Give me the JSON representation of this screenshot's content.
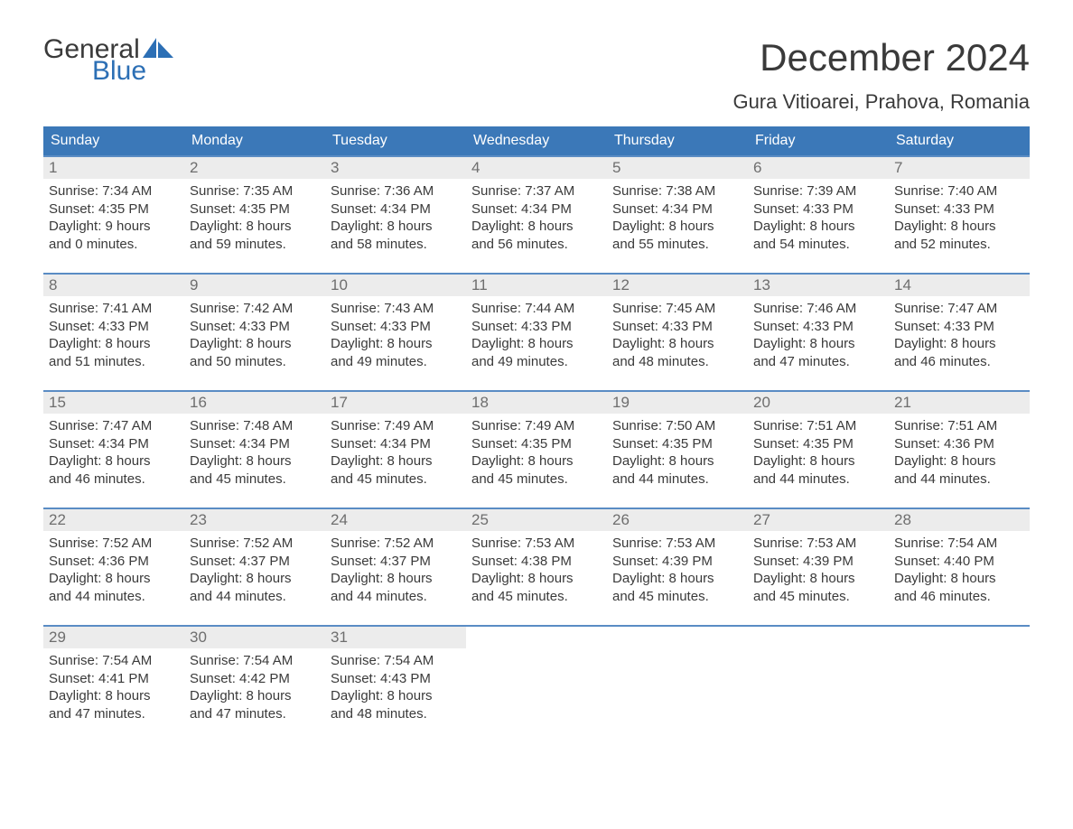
{
  "logo": {
    "line1": "General",
    "line2": "Blue",
    "accent_color": "#2c6fb5"
  },
  "title": "December 2024",
  "location": "Gura Vitioarei, Prahova, Romania",
  "colors": {
    "header_bg": "#3b78b8",
    "header_text": "#ffffff",
    "week_border": "#5a8cc4",
    "daynum_bg": "#ececec",
    "daynum_text": "#6e6e6e",
    "body_text": "#3a3a3a",
    "page_bg": "#ffffff"
  },
  "day_names": [
    "Sunday",
    "Monday",
    "Tuesday",
    "Wednesday",
    "Thursday",
    "Friday",
    "Saturday"
  ],
  "weeks": [
    [
      {
        "n": "1",
        "sr": "Sunrise: 7:34 AM",
        "ss": "Sunset: 4:35 PM",
        "d1": "Daylight: 9 hours",
        "d2": "and 0 minutes."
      },
      {
        "n": "2",
        "sr": "Sunrise: 7:35 AM",
        "ss": "Sunset: 4:35 PM",
        "d1": "Daylight: 8 hours",
        "d2": "and 59 minutes."
      },
      {
        "n": "3",
        "sr": "Sunrise: 7:36 AM",
        "ss": "Sunset: 4:34 PM",
        "d1": "Daylight: 8 hours",
        "d2": "and 58 minutes."
      },
      {
        "n": "4",
        "sr": "Sunrise: 7:37 AM",
        "ss": "Sunset: 4:34 PM",
        "d1": "Daylight: 8 hours",
        "d2": "and 56 minutes."
      },
      {
        "n": "5",
        "sr": "Sunrise: 7:38 AM",
        "ss": "Sunset: 4:34 PM",
        "d1": "Daylight: 8 hours",
        "d2": "and 55 minutes."
      },
      {
        "n": "6",
        "sr": "Sunrise: 7:39 AM",
        "ss": "Sunset: 4:33 PM",
        "d1": "Daylight: 8 hours",
        "d2": "and 54 minutes."
      },
      {
        "n": "7",
        "sr": "Sunrise: 7:40 AM",
        "ss": "Sunset: 4:33 PM",
        "d1": "Daylight: 8 hours",
        "d2": "and 52 minutes."
      }
    ],
    [
      {
        "n": "8",
        "sr": "Sunrise: 7:41 AM",
        "ss": "Sunset: 4:33 PM",
        "d1": "Daylight: 8 hours",
        "d2": "and 51 minutes."
      },
      {
        "n": "9",
        "sr": "Sunrise: 7:42 AM",
        "ss": "Sunset: 4:33 PM",
        "d1": "Daylight: 8 hours",
        "d2": "and 50 minutes."
      },
      {
        "n": "10",
        "sr": "Sunrise: 7:43 AM",
        "ss": "Sunset: 4:33 PM",
        "d1": "Daylight: 8 hours",
        "d2": "and 49 minutes."
      },
      {
        "n": "11",
        "sr": "Sunrise: 7:44 AM",
        "ss": "Sunset: 4:33 PM",
        "d1": "Daylight: 8 hours",
        "d2": "and 49 minutes."
      },
      {
        "n": "12",
        "sr": "Sunrise: 7:45 AM",
        "ss": "Sunset: 4:33 PM",
        "d1": "Daylight: 8 hours",
        "d2": "and 48 minutes."
      },
      {
        "n": "13",
        "sr": "Sunrise: 7:46 AM",
        "ss": "Sunset: 4:33 PM",
        "d1": "Daylight: 8 hours",
        "d2": "and 47 minutes."
      },
      {
        "n": "14",
        "sr": "Sunrise: 7:47 AM",
        "ss": "Sunset: 4:33 PM",
        "d1": "Daylight: 8 hours",
        "d2": "and 46 minutes."
      }
    ],
    [
      {
        "n": "15",
        "sr": "Sunrise: 7:47 AM",
        "ss": "Sunset: 4:34 PM",
        "d1": "Daylight: 8 hours",
        "d2": "and 46 minutes."
      },
      {
        "n": "16",
        "sr": "Sunrise: 7:48 AM",
        "ss": "Sunset: 4:34 PM",
        "d1": "Daylight: 8 hours",
        "d2": "and 45 minutes."
      },
      {
        "n": "17",
        "sr": "Sunrise: 7:49 AM",
        "ss": "Sunset: 4:34 PM",
        "d1": "Daylight: 8 hours",
        "d2": "and 45 minutes."
      },
      {
        "n": "18",
        "sr": "Sunrise: 7:49 AM",
        "ss": "Sunset: 4:35 PM",
        "d1": "Daylight: 8 hours",
        "d2": "and 45 minutes."
      },
      {
        "n": "19",
        "sr": "Sunrise: 7:50 AM",
        "ss": "Sunset: 4:35 PM",
        "d1": "Daylight: 8 hours",
        "d2": "and 44 minutes."
      },
      {
        "n": "20",
        "sr": "Sunrise: 7:51 AM",
        "ss": "Sunset: 4:35 PM",
        "d1": "Daylight: 8 hours",
        "d2": "and 44 minutes."
      },
      {
        "n": "21",
        "sr": "Sunrise: 7:51 AM",
        "ss": "Sunset: 4:36 PM",
        "d1": "Daylight: 8 hours",
        "d2": "and 44 minutes."
      }
    ],
    [
      {
        "n": "22",
        "sr": "Sunrise: 7:52 AM",
        "ss": "Sunset: 4:36 PM",
        "d1": "Daylight: 8 hours",
        "d2": "and 44 minutes."
      },
      {
        "n": "23",
        "sr": "Sunrise: 7:52 AM",
        "ss": "Sunset: 4:37 PM",
        "d1": "Daylight: 8 hours",
        "d2": "and 44 minutes."
      },
      {
        "n": "24",
        "sr": "Sunrise: 7:52 AM",
        "ss": "Sunset: 4:37 PM",
        "d1": "Daylight: 8 hours",
        "d2": "and 44 minutes."
      },
      {
        "n": "25",
        "sr": "Sunrise: 7:53 AM",
        "ss": "Sunset: 4:38 PM",
        "d1": "Daylight: 8 hours",
        "d2": "and 45 minutes."
      },
      {
        "n": "26",
        "sr": "Sunrise: 7:53 AM",
        "ss": "Sunset: 4:39 PM",
        "d1": "Daylight: 8 hours",
        "d2": "and 45 minutes."
      },
      {
        "n": "27",
        "sr": "Sunrise: 7:53 AM",
        "ss": "Sunset: 4:39 PM",
        "d1": "Daylight: 8 hours",
        "d2": "and 45 minutes."
      },
      {
        "n": "28",
        "sr": "Sunrise: 7:54 AM",
        "ss": "Sunset: 4:40 PM",
        "d1": "Daylight: 8 hours",
        "d2": "and 46 minutes."
      }
    ],
    [
      {
        "n": "29",
        "sr": "Sunrise: 7:54 AM",
        "ss": "Sunset: 4:41 PM",
        "d1": "Daylight: 8 hours",
        "d2": "and 47 minutes."
      },
      {
        "n": "30",
        "sr": "Sunrise: 7:54 AM",
        "ss": "Sunset: 4:42 PM",
        "d1": "Daylight: 8 hours",
        "d2": "and 47 minutes."
      },
      {
        "n": "31",
        "sr": "Sunrise: 7:54 AM",
        "ss": "Sunset: 4:43 PM",
        "d1": "Daylight: 8 hours",
        "d2": "and 48 minutes."
      },
      null,
      null,
      null,
      null
    ]
  ]
}
